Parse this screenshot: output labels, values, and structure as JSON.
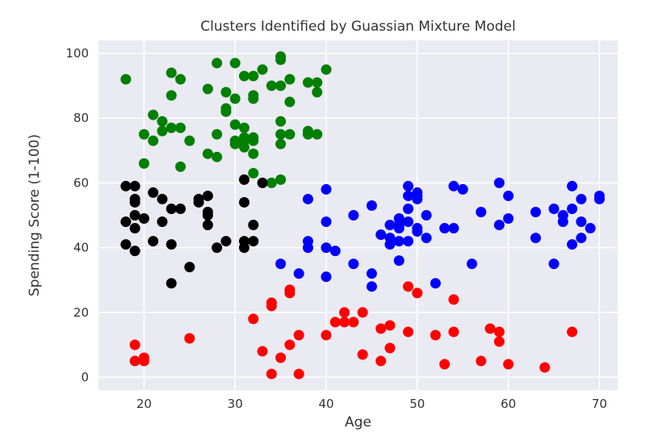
{
  "chart_data": {
    "type": "scatter",
    "title": "Clusters Identified by Guassian Mixture Model",
    "xlabel": "Age",
    "ylabel": "Spending Score (1-100)",
    "xlim": [
      15,
      72
    ],
    "ylim": [
      -4,
      104
    ],
    "x_ticks": [
      20,
      30,
      40,
      50,
      60,
      70
    ],
    "y_ticks": [
      0,
      20,
      40,
      60,
      80,
      100
    ],
    "grid": true,
    "background": "#eaeaf2",
    "series": [
      {
        "color": "#008000",
        "points": [
          [
            18,
            92
          ],
          [
            20,
            75
          ],
          [
            20,
            66
          ],
          [
            21,
            81
          ],
          [
            21,
            73
          ],
          [
            22,
            76
          ],
          [
            22,
            79
          ],
          [
            23,
            94
          ],
          [
            23,
            87
          ],
          [
            23,
            77
          ],
          [
            24,
            92
          ],
          [
            24,
            77
          ],
          [
            24,
            65
          ],
          [
            25,
            73
          ],
          [
            27,
            89
          ],
          [
            27,
            69
          ],
          [
            28,
            97
          ],
          [
            28,
            75
          ],
          [
            28,
            68
          ],
          [
            29,
            88
          ],
          [
            29,
            83
          ],
          [
            29,
            82
          ],
          [
            30,
            97
          ],
          [
            30,
            86
          ],
          [
            30,
            78
          ],
          [
            30,
            73
          ],
          [
            30,
            72
          ],
          [
            31,
            93
          ],
          [
            31,
            77
          ],
          [
            31,
            74
          ],
          [
            31,
            73
          ],
          [
            31,
            71
          ],
          [
            32,
            93
          ],
          [
            32,
            87
          ],
          [
            32,
            86
          ],
          [
            32,
            74
          ],
          [
            32,
            73
          ],
          [
            32,
            69
          ],
          [
            32,
            63
          ],
          [
            33,
            95
          ],
          [
            34,
            90
          ],
          [
            34,
            60
          ],
          [
            35,
            99
          ],
          [
            35,
            98
          ],
          [
            35,
            90
          ],
          [
            35,
            79
          ],
          [
            35,
            75
          ],
          [
            35,
            72
          ],
          [
            35,
            61
          ],
          [
            36,
            92
          ],
          [
            36,
            85
          ],
          [
            36,
            75
          ],
          [
            38,
            91
          ],
          [
            38,
            76
          ],
          [
            38,
            75
          ],
          [
            39,
            91
          ],
          [
            39,
            88
          ],
          [
            39,
            75
          ],
          [
            40,
            95
          ]
        ]
      },
      {
        "color": "#000000",
        "points": [
          [
            18,
            59
          ],
          [
            18,
            48
          ],
          [
            18,
            41
          ],
          [
            19,
            59
          ],
          [
            19,
            55
          ],
          [
            19,
            54
          ],
          [
            19,
            50
          ],
          [
            19,
            46
          ],
          [
            19,
            39
          ],
          [
            20,
            49
          ],
          [
            21,
            57
          ],
          [
            21,
            42
          ],
          [
            22,
            55
          ],
          [
            22,
            48
          ],
          [
            23,
            52
          ],
          [
            23,
            41
          ],
          [
            23,
            29
          ],
          [
            24,
            52
          ],
          [
            25,
            34
          ],
          [
            26,
            55
          ],
          [
            26,
            54
          ],
          [
            27,
            56
          ],
          [
            27,
            51
          ],
          [
            27,
            50
          ],
          [
            27,
            47
          ],
          [
            28,
            40
          ],
          [
            29,
            42
          ],
          [
            31,
            61
          ],
          [
            31,
            54
          ],
          [
            31,
            42
          ],
          [
            31,
            40
          ],
          [
            32,
            47
          ],
          [
            32,
            42
          ],
          [
            33,
            60
          ]
        ]
      },
      {
        "color": "#0000ff",
        "points": [
          [
            35,
            35
          ],
          [
            37,
            32
          ],
          [
            38,
            55
          ],
          [
            38,
            42
          ],
          [
            38,
            40
          ],
          [
            40,
            58
          ],
          [
            40,
            48
          ],
          [
            40,
            40
          ],
          [
            40,
            31
          ],
          [
            41,
            39
          ],
          [
            43,
            50
          ],
          [
            43,
            35
          ],
          [
            45,
            53
          ],
          [
            45,
            32
          ],
          [
            45,
            28
          ],
          [
            46,
            44
          ],
          [
            47,
            47
          ],
          [
            47,
            43
          ],
          [
            47,
            41
          ],
          [
            48,
            49
          ],
          [
            48,
            47
          ],
          [
            48,
            46
          ],
          [
            48,
            42
          ],
          [
            48,
            36
          ],
          [
            49,
            59
          ],
          [
            49,
            56
          ],
          [
            49,
            52
          ],
          [
            49,
            48
          ],
          [
            49,
            42
          ],
          [
            50,
            57
          ],
          [
            50,
            56
          ],
          [
            50,
            55
          ],
          [
            50,
            46
          ],
          [
            50,
            45
          ],
          [
            51,
            50
          ],
          [
            51,
            43
          ],
          [
            52,
            29
          ],
          [
            53,
            46
          ],
          [
            54,
            59
          ],
          [
            54,
            46
          ],
          [
            55,
            58
          ],
          [
            56,
            35
          ],
          [
            57,
            51
          ],
          [
            59,
            60
          ],
          [
            59,
            47
          ],
          [
            60,
            56
          ],
          [
            60,
            49
          ],
          [
            63,
            51
          ],
          [
            63,
            43
          ],
          [
            65,
            52
          ],
          [
            65,
            35
          ],
          [
            66,
            50
          ],
          [
            66,
            48
          ],
          [
            67,
            59
          ],
          [
            67,
            52
          ],
          [
            67,
            41
          ],
          [
            68,
            55
          ],
          [
            68,
            48
          ],
          [
            68,
            43
          ],
          [
            69,
            46
          ],
          [
            70,
            56
          ],
          [
            70,
            55
          ]
        ]
      },
      {
        "color": "#ff0000",
        "points": [
          [
            19,
            10
          ],
          [
            19,
            5
          ],
          [
            20,
            6
          ],
          [
            20,
            5
          ],
          [
            25,
            12
          ],
          [
            32,
            18
          ],
          [
            33,
            8
          ],
          [
            34,
            23
          ],
          [
            34,
            22
          ],
          [
            34,
            1
          ],
          [
            35,
            6
          ],
          [
            36,
            27
          ],
          [
            36,
            26
          ],
          [
            36,
            10
          ],
          [
            37,
            13
          ],
          [
            37,
            1
          ],
          [
            40,
            13
          ],
          [
            41,
            17
          ],
          [
            42,
            20
          ],
          [
            42,
            17
          ],
          [
            43,
            17
          ],
          [
            44,
            20
          ],
          [
            44,
            7
          ],
          [
            46,
            15
          ],
          [
            46,
            5
          ],
          [
            47,
            16
          ],
          [
            47,
            9
          ],
          [
            49,
            28
          ],
          [
            49,
            14
          ],
          [
            50,
            26
          ],
          [
            52,
            13
          ],
          [
            53,
            4
          ],
          [
            54,
            24
          ],
          [
            54,
            14
          ],
          [
            57,
            5
          ],
          [
            58,
            15
          ],
          [
            59,
            14
          ],
          [
            59,
            11
          ],
          [
            60,
            4
          ],
          [
            64,
            3
          ],
          [
            67,
            14
          ]
        ]
      }
    ]
  }
}
